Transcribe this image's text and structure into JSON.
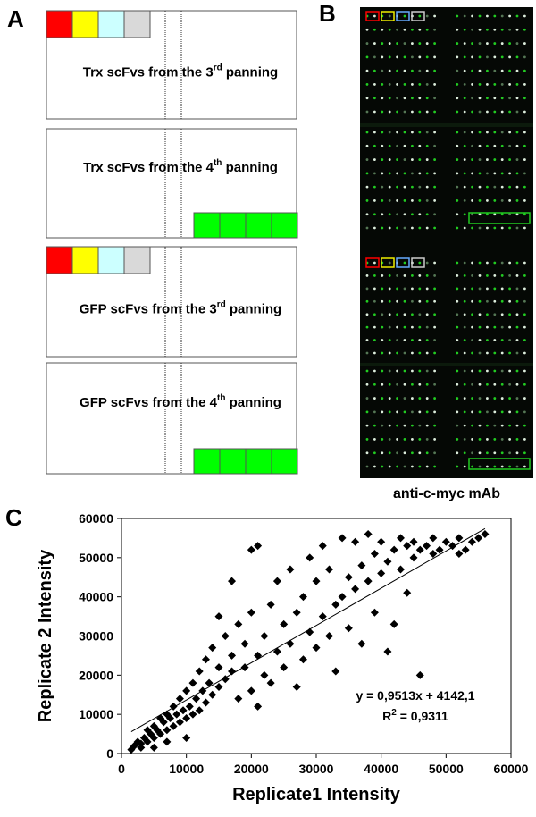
{
  "panels": {
    "labels": [
      "A",
      "B",
      "C"
    ],
    "a_boxes": [
      {
        "prefix": "Trx scFvs from the 3",
        "sup": "rd",
        "suffix": " panning"
      },
      {
        "prefix": "Trx scFvs from the 4",
        "sup": "th",
        "suffix": " panning"
      },
      {
        "prefix": "GFP scFvs from the 3",
        "sup": "rd",
        "suffix": " panning"
      },
      {
        "prefix": "GFP scFvs from the 4",
        "sup": "th",
        "suffix": " panning"
      }
    ],
    "b_caption": "anti-c-myc mAb"
  },
  "chart_data": {
    "type": "scatter",
    "xlabel": "Replicate1 Intensity",
    "ylabel": "Replicate 2 Intensity",
    "color": "#000000",
    "annotation": {
      "equation": "y = 0,9513x + 4142,1",
      "r_prefix": "R",
      "r_sup": "2",
      "r_suffix": " = 0,9311"
    },
    "trendline": {
      "slope": 0.9513,
      "intercept": 4142.1
    },
    "xlim": [
      0,
      60000
    ],
    "xticks": [
      0,
      10000,
      20000,
      30000,
      40000,
      50000,
      60000
    ],
    "ylim": [
      0,
      60000
    ],
    "yticks": [
      0,
      10000,
      20000,
      30000,
      40000,
      50000,
      60000
    ],
    "x": [
      1500,
      2000,
      2500,
      3000,
      3000,
      3500,
      4000,
      4000,
      4500,
      5000,
      5000,
      5000,
      5500,
      6000,
      6000,
      6500,
      7000,
      7000,
      7000,
      7500,
      8000,
      8000,
      8500,
      9000,
      9000,
      9500,
      10000,
      10000,
      10000,
      10500,
      11000,
      11000,
      11500,
      12000,
      12000,
      12500,
      13000,
      13000,
      13500,
      14000,
      14000,
      15000,
      15000,
      15000,
      16000,
      16000,
      17000,
      17000,
      17000,
      18000,
      18000,
      19000,
      19000,
      20000,
      20000,
      20000,
      21000,
      21000,
      21000,
      22000,
      22000,
      23000,
      23000,
      24000,
      24000,
      25000,
      25000,
      26000,
      26000,
      27000,
      27000,
      28000,
      28000,
      29000,
      29000,
      30000,
      30000,
      31000,
      31000,
      32000,
      32000,
      33000,
      33000,
      34000,
      34000,
      35000,
      35000,
      36000,
      36000,
      37000,
      37000,
      38000,
      38000,
      39000,
      39000,
      40000,
      40000,
      41000,
      41000,
      42000,
      42000,
      43000,
      43000,
      44000,
      44000,
      45000,
      45000,
      46000,
      46000,
      47000,
      48000,
      48000,
      49000,
      50000,
      51000,
      52000,
      52000,
      53000,
      54000,
      55000,
      56000
    ],
    "values": [
      1000,
      2000,
      3000,
      2500,
      1500,
      4000,
      3000,
      6000,
      5000,
      4000,
      7000,
      1500,
      6000,
      5000,
      9000,
      8000,
      6000,
      10000,
      3000,
      9000,
      7000,
      12000,
      10000,
      8000,
      14000,
      11000,
      9000,
      16000,
      4000,
      12000,
      10000,
      18000,
      14000,
      11000,
      21000,
      16000,
      13000,
      24000,
      18000,
      15000,
      27000,
      17000,
      22000,
      35000,
      19000,
      30000,
      21000,
      25000,
      44000,
      14000,
      33000,
      22000,
      28000,
      16000,
      36000,
      52000,
      25000,
      53000,
      12000,
      20000,
      30000,
      18000,
      38000,
      26000,
      44000,
      22000,
      33000,
      28000,
      47000,
      17000,
      36000,
      24000,
      40000,
      31000,
      50000,
      27000,
      44000,
      35000,
      53000,
      30000,
      47000,
      38000,
      21000,
      40000,
      55000,
      32000,
      45000,
      42000,
      54000,
      28000,
      48000,
      44000,
      56000,
      36000,
      51000,
      46000,
      54000,
      26000,
      49000,
      33000,
      52000,
      47000,
      55000,
      41000,
      53000,
      50000,
      54000,
      20000,
      52000,
      53000,
      51000,
      55000,
      52000,
      54000,
      53000,
      51000,
      55000,
      52000,
      54000,
      55000,
      56000
    ]
  }
}
